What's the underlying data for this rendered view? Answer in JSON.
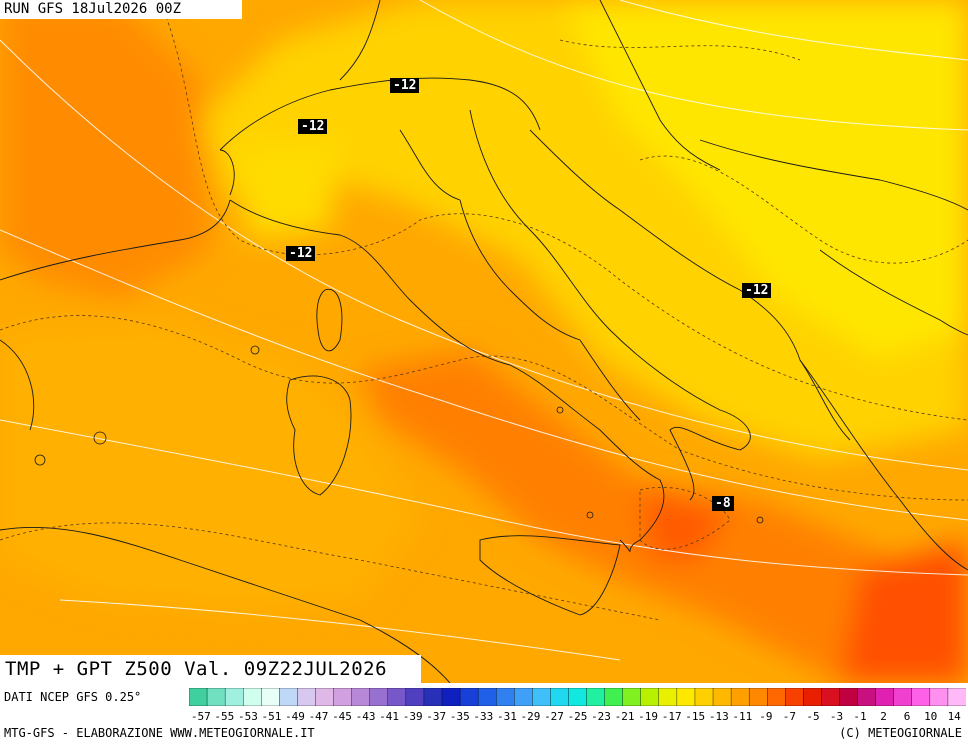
{
  "header": {
    "run_text": "RUN GFS 18Jul2026 00Z"
  },
  "map": {
    "title": "TMP + GPT Z500 Val. 09Z22JUL2026",
    "isotherm_labels": [
      "-12",
      "-12",
      "-12",
      "-12",
      "-8"
    ]
  },
  "legend": {
    "source_text": "DATI NCEP GFS 0.25°",
    "ticks": [
      "-57",
      "-55",
      "-53",
      "-51",
      "-49",
      "-47",
      "-45",
      "-43",
      "-41",
      "-39",
      "-37",
      "-35",
      "-33",
      "-31",
      "-29",
      "-27",
      "-25",
      "-23",
      "-21",
      "-19",
      "-17",
      "-15",
      "-13",
      "-11",
      "-9",
      "-7",
      "-5",
      "-3",
      "-1",
      "2",
      "6",
      "10",
      "14"
    ],
    "colors": [
      "#40d0a0",
      "#70e0c0",
      "#a0f0e0",
      "#d0fff0",
      "#e8fff8",
      "#c0d8f8",
      "#d8c8f0",
      "#e0b8e8",
      "#d0a0e0",
      "#b888d8",
      "#9870d0",
      "#7858c8",
      "#5040c0",
      "#2830b8",
      "#1020c0",
      "#1840d8",
      "#2060e8",
      "#3080f0",
      "#40a0f8",
      "#40c0f8",
      "#20d8f0",
      "#10e8e0",
      "#20f0a0",
      "#40f050",
      "#80f020",
      "#b8f000",
      "#e8f000",
      "#ffe800",
      "#ffd000",
      "#ffb800",
      "#ffa000",
      "#ff8800",
      "#ff6800",
      "#f84000",
      "#e82000",
      "#d81020",
      "#c00040",
      "#c81080",
      "#e020b0",
      "#f040d0",
      "#ff60e8",
      "#ff90f0",
      "#ffb8f8"
    ]
  },
  "footer": {
    "left": "MTG-GFS - ELABORAZIONE WWW.METEOGIORNALE.IT",
    "right": "(C) METEOGIORNALE"
  }
}
